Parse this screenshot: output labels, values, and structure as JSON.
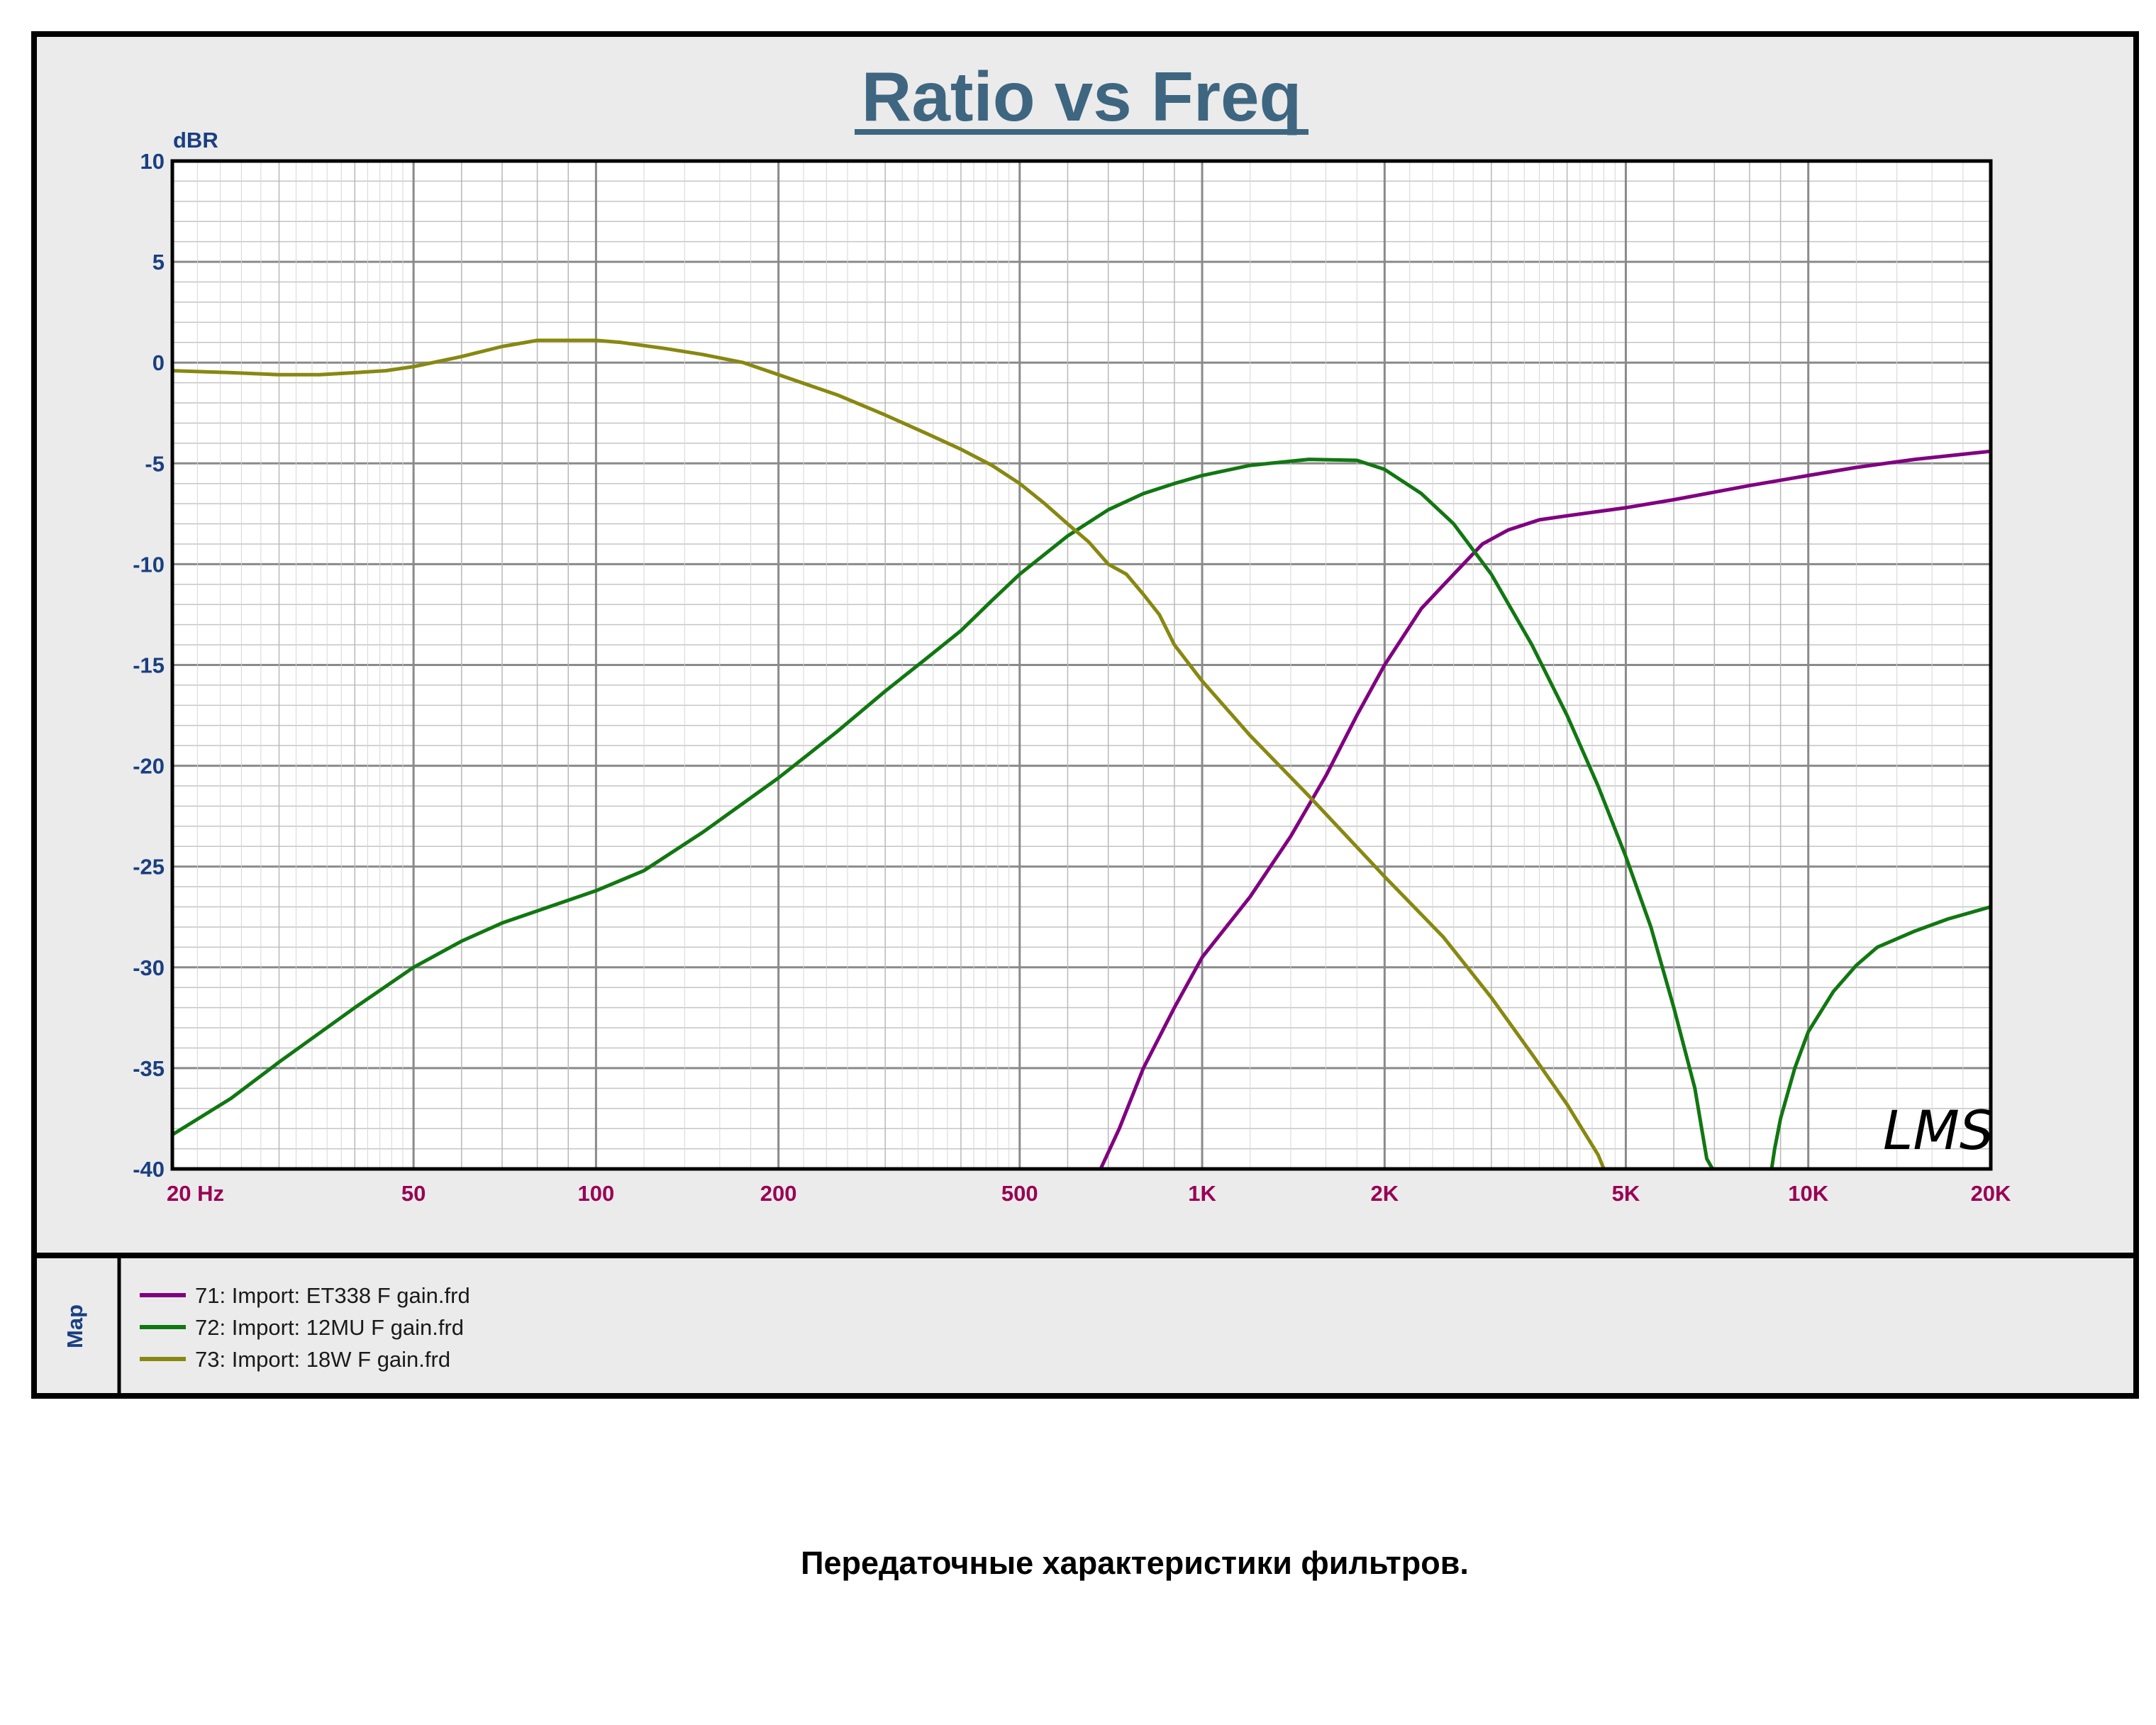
{
  "caption": "Передаточные характеристики фильтров.",
  "chart_data": {
    "type": "line",
    "title": "Ratio vs Freq",
    "ylabel": "dBR",
    "xscale": "log",
    "xlim": [
      20,
      20000
    ],
    "ylim": [
      -40,
      10
    ],
    "grid": true,
    "legend_position": "bottom",
    "legend_title": "Map",
    "logo": "LMS",
    "x_tick_labels": [
      {
        "value": 20,
        "label": "20  Hz"
      },
      {
        "value": 50,
        "label": "50"
      },
      {
        "value": 100,
        "label": "100"
      },
      {
        "value": 200,
        "label": "200"
      },
      {
        "value": 500,
        "label": "500"
      },
      {
        "value": 1000,
        "label": "1K"
      },
      {
        "value": 2000,
        "label": "2K"
      },
      {
        "value": 5000,
        "label": "5K"
      },
      {
        "value": 10000,
        "label": "10K"
      },
      {
        "value": 20000,
        "label": "20K"
      }
    ],
    "y_tick_labels": [
      {
        "value": 10,
        "label": "10"
      },
      {
        "value": 5,
        "label": "5"
      },
      {
        "value": 0,
        "label": "0"
      },
      {
        "value": -5,
        "label": "-5"
      },
      {
        "value": -10,
        "label": "-10"
      },
      {
        "value": -15,
        "label": "-15"
      },
      {
        "value": -20,
        "label": "-20"
      },
      {
        "value": -25,
        "label": "-25"
      },
      {
        "value": -30,
        "label": "-30"
      },
      {
        "value": -35,
        "label": "-35"
      },
      {
        "value": -40,
        "label": "-40"
      }
    ],
    "series": [
      {
        "name": "71: Import: ET338 F gain.frd",
        "color": "#800080",
        "points": [
          [
            20,
            -40
          ],
          [
            680,
            -40
          ],
          [
            730,
            -38
          ],
          [
            800,
            -35
          ],
          [
            900,
            -32
          ],
          [
            1000,
            -29.5
          ],
          [
            1200,
            -26.5
          ],
          [
            1400,
            -23.5
          ],
          [
            1600,
            -20.5
          ],
          [
            1800,
            -17.5
          ],
          [
            2000,
            -15
          ],
          [
            2300,
            -12.2
          ],
          [
            2600,
            -10.5
          ],
          [
            2900,
            -9
          ],
          [
            3200,
            -8.3
          ],
          [
            3600,
            -7.8
          ],
          [
            4000,
            -7.6
          ],
          [
            5000,
            -7.2
          ],
          [
            6000,
            -6.8
          ],
          [
            8000,
            -6.1
          ],
          [
            10000,
            -5.6
          ],
          [
            12000,
            -5.2
          ],
          [
            15000,
            -4.8
          ],
          [
            20000,
            -4.4
          ]
        ]
      },
      {
        "name": "72: Import: 12MU F gain.frd",
        "color": "#117711",
        "points": [
          [
            20,
            -38.3
          ],
          [
            25,
            -36.5
          ],
          [
            30,
            -34.7
          ],
          [
            40,
            -32
          ],
          [
            50,
            -30
          ],
          [
            60,
            -28.7
          ],
          [
            70,
            -27.8
          ],
          [
            80,
            -27.2
          ],
          [
            100,
            -26.2
          ],
          [
            120,
            -25.2
          ],
          [
            150,
            -23.3
          ],
          [
            200,
            -20.6
          ],
          [
            250,
            -18.3
          ],
          [
            300,
            -16.3
          ],
          [
            350,
            -14.7
          ],
          [
            400,
            -13.3
          ],
          [
            450,
            -11.8
          ],
          [
            500,
            -10.5
          ],
          [
            600,
            -8.6
          ],
          [
            700,
            -7.3
          ],
          [
            800,
            -6.5
          ],
          [
            900,
            -6
          ],
          [
            1000,
            -5.6
          ],
          [
            1200,
            -5.1
          ],
          [
            1500,
            -4.8
          ],
          [
            1800,
            -4.85
          ],
          [
            2000,
            -5.3
          ],
          [
            2300,
            -6.5
          ],
          [
            2600,
            -8
          ],
          [
            3000,
            -10.5
          ],
          [
            3500,
            -14
          ],
          [
            4000,
            -17.5
          ],
          [
            4500,
            -21
          ],
          [
            5000,
            -24.5
          ],
          [
            5500,
            -28
          ],
          [
            6000,
            -32
          ],
          [
            6500,
            -36
          ],
          [
            6800,
            -39.5
          ],
          [
            6950,
            -40
          ],
          [
            8700,
            -40
          ],
          [
            8800,
            -39
          ],
          [
            9000,
            -37.5
          ],
          [
            9500,
            -35
          ],
          [
            10000,
            -33.2
          ],
          [
            11000,
            -31.2
          ],
          [
            12000,
            -29.9
          ],
          [
            13000,
            -29
          ],
          [
            15000,
            -28.2
          ],
          [
            17000,
            -27.6
          ],
          [
            20000,
            -27
          ]
        ]
      },
      {
        "name": "73: Import: 18W F gain.frd",
        "color": "#888811",
        "points": [
          [
            20,
            -0.4
          ],
          [
            25,
            -0.5
          ],
          [
            30,
            -0.6
          ],
          [
            35,
            -0.6
          ],
          [
            40,
            -0.5
          ],
          [
            45,
            -0.4
          ],
          [
            50,
            -0.2
          ],
          [
            60,
            0.3
          ],
          [
            70,
            0.8
          ],
          [
            80,
            1.1
          ],
          [
            90,
            1.1
          ],
          [
            100,
            1.1
          ],
          [
            110,
            1
          ],
          [
            130,
            0.7
          ],
          [
            150,
            0.4
          ],
          [
            175,
            0
          ],
          [
            200,
            -0.6
          ],
          [
            250,
            -1.6
          ],
          [
            300,
            -2.6
          ],
          [
            350,
            -3.5
          ],
          [
            400,
            -4.3
          ],
          [
            450,
            -5.1
          ],
          [
            500,
            -6
          ],
          [
            550,
            -7
          ],
          [
            600,
            -8
          ],
          [
            650,
            -8.9
          ],
          [
            700,
            -10
          ],
          [
            750,
            -10.5
          ],
          [
            800,
            -11.5
          ],
          [
            850,
            -12.5
          ],
          [
            900,
            -14
          ],
          [
            1000,
            -15.8
          ],
          [
            1200,
            -18.5
          ],
          [
            1500,
            -21.5
          ],
          [
            2000,
            -25.5
          ],
          [
            2500,
            -28.5
          ],
          [
            3000,
            -31.5
          ],
          [
            3500,
            -34.3
          ],
          [
            4000,
            -36.8
          ],
          [
            4500,
            -39.3
          ],
          [
            4600,
            -40
          ],
          [
            20000,
            -40
          ]
        ]
      }
    ]
  }
}
